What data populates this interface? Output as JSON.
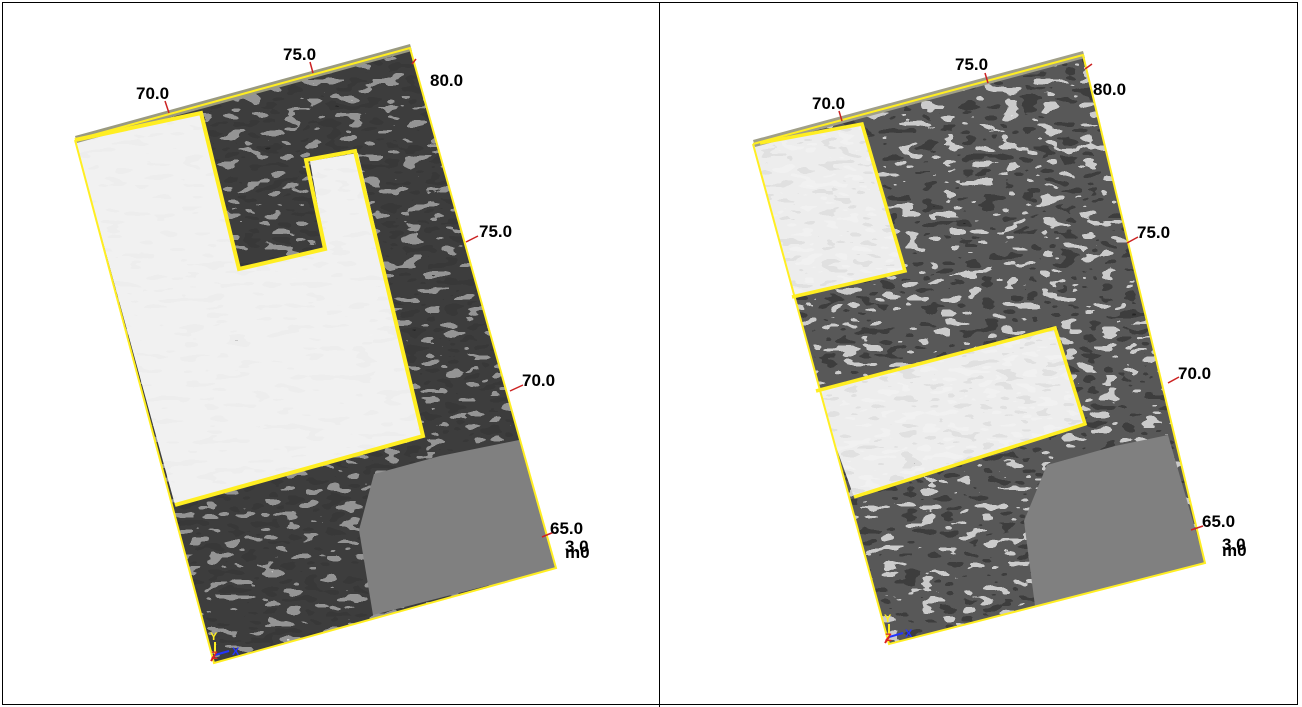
{
  "colors": {
    "outline": "#ffee22",
    "tick": "#cc2222",
    "background_gray": "#808080",
    "axis_x": "#2233ff",
    "axis_y": "#ffee22",
    "axis_z": "#dd2222"
  },
  "panels": [
    {
      "top_ticks": [
        "70.0",
        "75.0",
        "80.0"
      ],
      "right_ticks": [
        "75.0",
        "70.0",
        "65.0"
      ],
      "corner_text": "3.0",
      "corner_text2": "m0",
      "axis": {
        "x": "X",
        "y": "Y",
        "z": "Z"
      }
    },
    {
      "top_ticks": [
        "70.0",
        "75.0",
        "80.0"
      ],
      "right_ticks": [
        "75.0",
        "70.0",
        "65.0"
      ],
      "corner_text": "3.0",
      "corner_text2": "m0",
      "axis": {
        "x": "X",
        "y": "Y",
        "z": "Z"
      }
    }
  ]
}
